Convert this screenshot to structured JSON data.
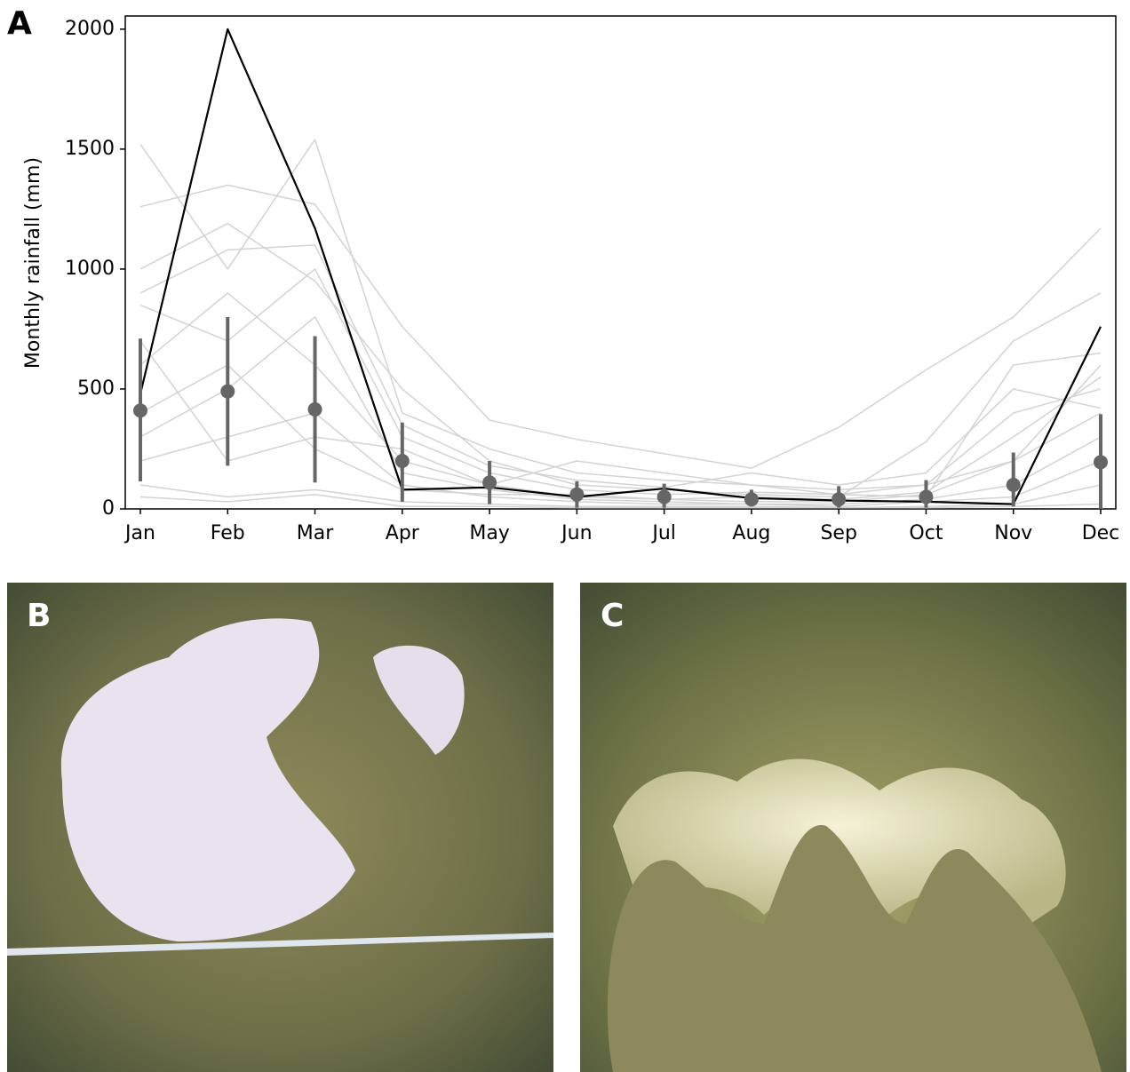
{
  "panel_labels": [
    "A",
    "B",
    "C"
  ],
  "chart_data": {
    "type": "line",
    "ylabel": "Monthly rainfall (mm)",
    "categories": [
      "Jan",
      "Feb",
      "Mar",
      "Apr",
      "May",
      "Jun",
      "Jul",
      "Aug",
      "Sep",
      "Oct",
      "Nov",
      "Dec"
    ],
    "ylim": [
      0,
      2055
    ],
    "yticks": [
      0,
      500,
      1000,
      1500,
      2000
    ],
    "series": [
      {
        "color": "#d3d3d3",
        "linewidth": 1.5,
        "values": [
          1520,
          1000,
          1540,
          400,
          250,
          150,
          120,
          100,
          80,
          100,
          200,
          600
        ]
      },
      {
        "color": "#d3d3d3",
        "linewidth": 1.5,
        "values": [
          1260,
          1350,
          1270,
          760,
          370,
          290,
          230,
          170,
          340,
          580,
          800,
          1170
        ]
      },
      {
        "color": "#d3d3d3",
        "linewidth": 1.5,
        "values": [
          1000,
          1190,
          950,
          500,
          200,
          100,
          80,
          60,
          50,
          280,
          700,
          900
        ]
      },
      {
        "color": "#d3d3d3",
        "linewidth": 1.5,
        "values": [
          850,
          700,
          1000,
          300,
          150,
          80,
          60,
          70,
          60,
          100,
          400,
          500
        ]
      },
      {
        "color": "#d3d3d3",
        "linewidth": 1.5,
        "values": [
          600,
          900,
          600,
          200,
          100,
          50,
          40,
          30,
          30,
          60,
          200,
          400
        ]
      },
      {
        "color": "#d3d3d3",
        "linewidth": 1.5,
        "values": [
          300,
          500,
          800,
          150,
          80,
          40,
          30,
          20,
          20,
          40,
          100,
          300
        ]
      },
      {
        "color": "#d3d3d3",
        "linewidth": 1.5,
        "values": [
          200,
          300,
          400,
          100,
          50,
          30,
          20,
          20,
          10,
          30,
          50,
          200
        ]
      },
      {
        "color": "#d3d3d3",
        "linewidth": 1.5,
        "values": [
          100,
          50,
          80,
          30,
          20,
          10,
          10,
          10,
          5,
          10,
          20,
          100
        ]
      },
      {
        "color": "#d3d3d3",
        "linewidth": 1.5,
        "values": [
          700,
          200,
          300,
          250,
          100,
          200,
          150,
          100,
          60,
          50,
          600,
          650
        ]
      },
      {
        "color": "#d3d3d3",
        "linewidth": 1.5,
        "values": [
          400,
          600,
          250,
          80,
          60,
          60,
          40,
          50,
          40,
          70,
          300,
          550
        ]
      },
      {
        "color": "#d3d3d3",
        "linewidth": 1.5,
        "values": [
          50,
          30,
          60,
          10,
          10,
          5,
          5,
          5,
          5,
          5,
          10,
          20
        ]
      },
      {
        "color": "#d3d3d3",
        "linewidth": 1.5,
        "values": [
          900,
          1080,
          1100,
          350,
          180,
          120,
          90,
          150,
          100,
          150,
          500,
          420
        ]
      },
      {
        "color": "#000000",
        "linewidth": 2.2,
        "values": [
          480,
          2000,
          1170,
          80,
          90,
          50,
          85,
          45,
          35,
          30,
          20,
          760
        ]
      },
      {
        "color": "#666666",
        "marker": true,
        "values": [
          410,
          490,
          415,
          200,
          110,
          60,
          50,
          40,
          40,
          50,
          100,
          195
        ],
        "error_low": [
          115,
          180,
          110,
          30,
          20,
          5,
          5,
          10,
          5,
          5,
          10,
          0
        ],
        "error_high": [
          710,
          800,
          720,
          360,
          200,
          115,
          105,
          80,
          95,
          120,
          235,
          395
        ]
      }
    ]
  }
}
